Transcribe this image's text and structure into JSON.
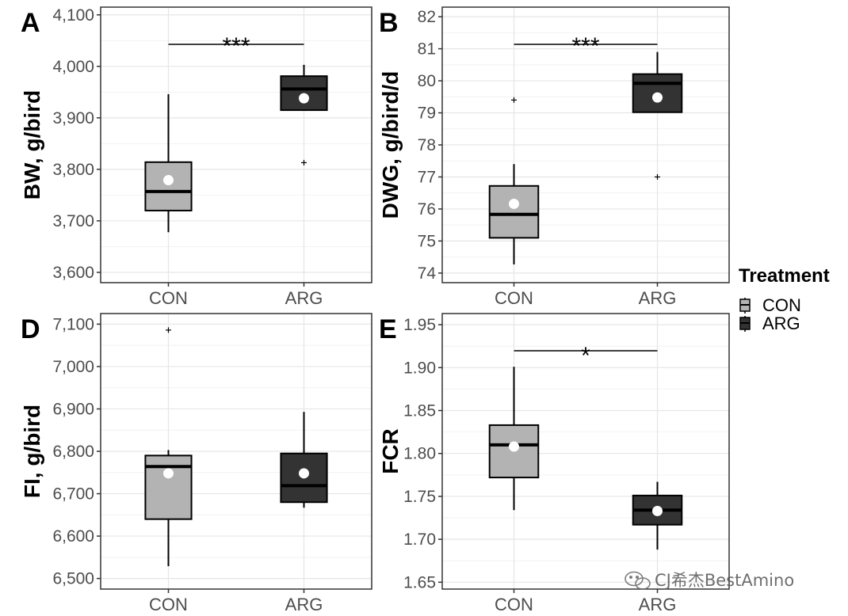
{
  "legend": {
    "title": "Treatment",
    "entries": [
      {
        "name": "CON",
        "color": "#b3b3b3"
      },
      {
        "name": "ARG",
        "color": "#333333"
      }
    ]
  },
  "watermark": "CJ希杰BestAmino",
  "chart_data": [
    {
      "type": "box",
      "panel": "A",
      "ylabel": "BW, g/bird",
      "categories": [
        "CON",
        "ARG"
      ],
      "yticks": [
        3600,
        3700,
        3800,
        3900,
        4000,
        4100
      ],
      "ytick_labels": [
        "3,600",
        "3,700",
        "3,800",
        "3,900",
        "4,000",
        "4,100"
      ],
      "ylim": [
        3580,
        4115
      ],
      "grid": true,
      "significance": "***",
      "series": [
        {
          "name": "CON",
          "fill": "#b3b3b3",
          "whisker_low": 3678,
          "q1": 3720,
          "median": 3757,
          "q3": 3814,
          "whisker_high": 3946,
          "mean": 3779,
          "outliers": []
        },
        {
          "name": "ARG",
          "fill": "#333333",
          "whisker_low": 3915,
          "q1": 3915,
          "median": 3956,
          "q3": 3981,
          "whisker_high": 4003,
          "mean": 3938,
          "outliers": [
            3813
          ]
        }
      ]
    },
    {
      "type": "box",
      "panel": "B",
      "ylabel": "DWG, g/bird/d",
      "categories": [
        "CON",
        "ARG"
      ],
      "yticks": [
        74,
        75,
        76,
        77,
        78,
        79,
        80,
        81,
        82
      ],
      "ytick_labels": [
        "74",
        "75",
        "76",
        "77",
        "78",
        "79",
        "80",
        "81",
        "82"
      ],
      "ylim": [
        73.7,
        82.3
      ],
      "grid": true,
      "significance": "***",
      "series": [
        {
          "name": "CON",
          "fill": "#b3b3b3",
          "whisker_low": 74.27,
          "q1": 75.1,
          "median": 75.83,
          "q3": 76.72,
          "whisker_high": 77.4,
          "mean": 76.16,
          "outliers": [
            79.4
          ]
        },
        {
          "name": "ARG",
          "fill": "#333333",
          "whisker_low": 79.02,
          "q1": 79.02,
          "median": 79.92,
          "q3": 80.21,
          "whisker_high": 80.9,
          "mean": 79.48,
          "outliers": [
            77.0
          ]
        }
      ]
    },
    {
      "type": "box",
      "panel": "D",
      "ylabel": "FI, g/bird",
      "categories": [
        "CON",
        "ARG"
      ],
      "yticks": [
        6500,
        6600,
        6700,
        6800,
        6900,
        7000,
        7100
      ],
      "ytick_labels": [
        "6,500",
        "6,600",
        "6,700",
        "6,800",
        "6,900",
        "7,000",
        "7,100"
      ],
      "ylim": [
        6475,
        7125
      ],
      "grid": true,
      "significance": "",
      "series": [
        {
          "name": "CON",
          "fill": "#b3b3b3",
          "whisker_low": 6529,
          "q1": 6640,
          "median": 6764,
          "q3": 6790,
          "whisker_high": 6803,
          "mean": 6748,
          "outliers": [
            7086
          ]
        },
        {
          "name": "ARG",
          "fill": "#333333",
          "whisker_low": 6667,
          "q1": 6680,
          "median": 6719,
          "q3": 6795,
          "whisker_high": 6893,
          "mean": 6748,
          "outliers": []
        }
      ]
    },
    {
      "type": "box",
      "panel": "E",
      "ylabel": "FCR",
      "categories": [
        "CON",
        "ARG"
      ],
      "yticks": [
        1.65,
        1.7,
        1.75,
        1.8,
        1.85,
        1.9,
        1.95
      ],
      "ytick_labels": [
        "1.65",
        "1.70",
        "1.75",
        "1.80",
        "1.85",
        "1.90",
        "1.95"
      ],
      "ylim": [
        1.642,
        1.963
      ],
      "grid": true,
      "significance": "*",
      "series": [
        {
          "name": "CON",
          "fill": "#b3b3b3",
          "whisker_low": 1.734,
          "q1": 1.772,
          "median": 1.81,
          "q3": 1.833,
          "whisker_high": 1.901,
          "mean": 1.808,
          "outliers": []
        },
        {
          "name": "ARG",
          "fill": "#333333",
          "whisker_low": 1.688,
          "q1": 1.717,
          "median": 1.734,
          "q3": 1.751,
          "whisker_high": 1.767,
          "mean": 1.733,
          "outliers": []
        }
      ]
    }
  ]
}
